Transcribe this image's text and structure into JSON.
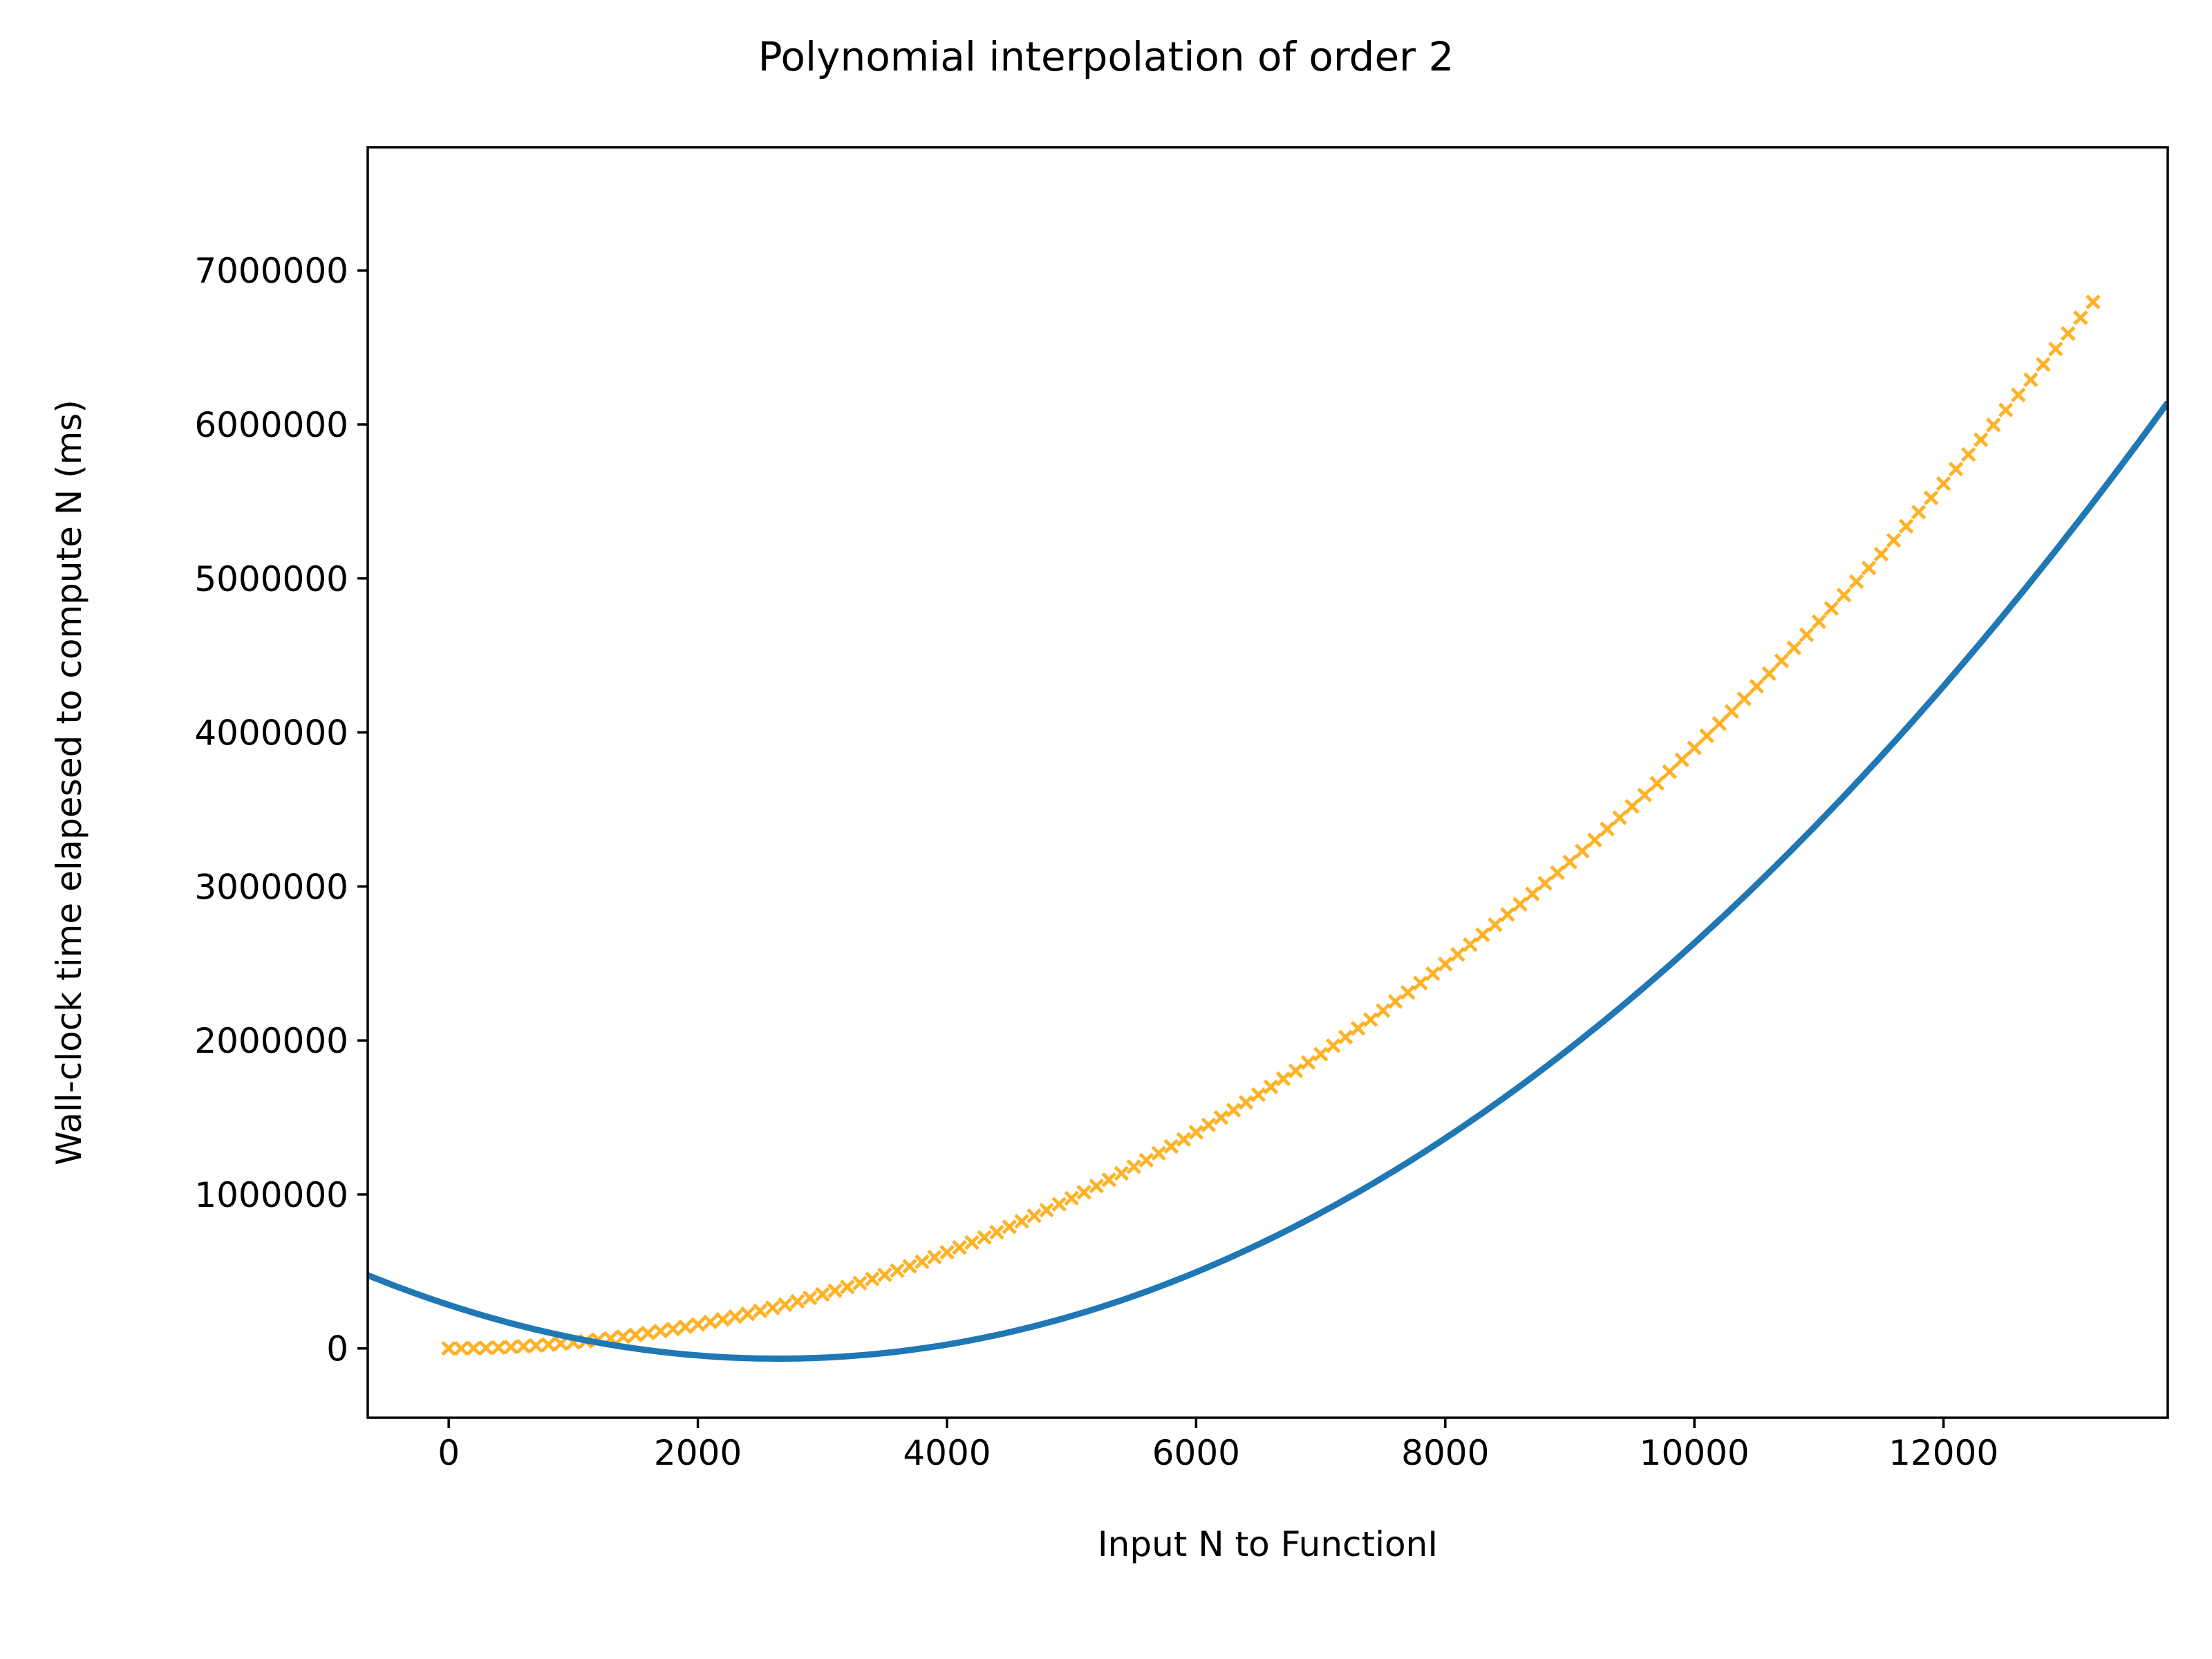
{
  "chart_data": {
    "type": "scatter",
    "title": "Polynomial interpolation of order 2",
    "xlabel": "Input N to FunctionI",
    "ylabel": "Wall-clock time elapesed to compute N (ms)",
    "xlim": [
      -650,
      13800
    ],
    "ylim": [
      -450000,
      7800000
    ],
    "x_ticks": [
      0,
      2000,
      4000,
      6000,
      8000,
      10000,
      12000
    ],
    "y_ticks": [
      0,
      1000000,
      2000000,
      3000000,
      4000000,
      5000000,
      6000000,
      7000000
    ],
    "x_tick_labels": [
      "0",
      "2000",
      "4000",
      "6000",
      "8000",
      "10000",
      "12000"
    ],
    "y_tick_labels": [
      "0",
      "1000000",
      "2000000",
      "3000000",
      "4000000",
      "5000000",
      "6000000",
      "7000000"
    ],
    "grid": false,
    "series": [
      {
        "kind": "scatter",
        "marker": "x",
        "color": "#FFA500",
        "x_range": [
          0,
          13200
        ],
        "x_step": 100,
        "model": "y = 0.039 * x^2",
        "note": "observed timings, roughly quadratic from 0 to about 6800000 ms"
      },
      {
        "kind": "fit-line",
        "color": "#1F77B4",
        "x_range": [
          -650,
          13800
        ],
        "coefficients": [
          0.0499,
          -264,
          283000
        ],
        "model": "y = 0.0499*x^2 - 264*x + 283000"
      }
    ]
  }
}
